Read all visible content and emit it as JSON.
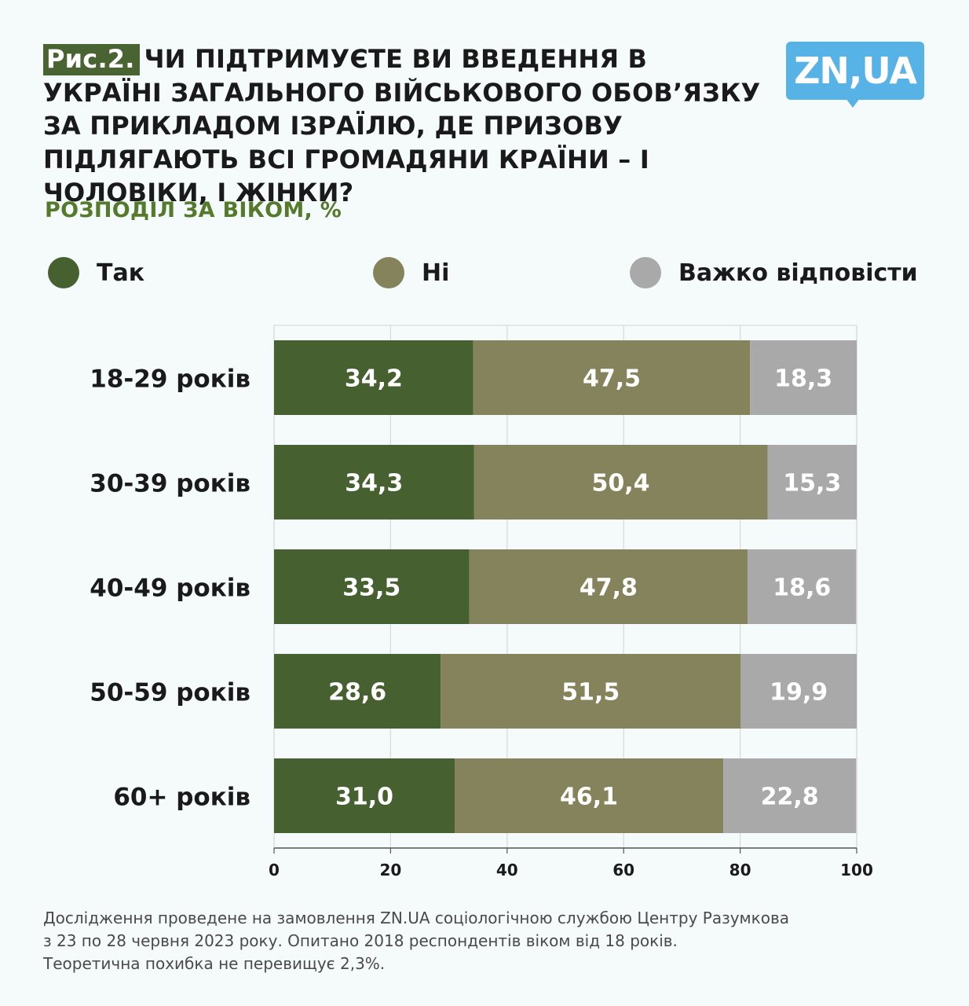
{
  "header": {
    "figure_tag": "Рис.2.",
    "title": "ЧИ ПІДТРИМУЄТЕ ВИ ВВЕДЕННЯ В УКРАЇНІ ЗАГАЛЬНОГО ВІЙСЬКОВОГО ОБОВ’ЯЗКУ ЗА ПРИКЛАДОМ ІЗРАЇЛЮ, ДЕ ПРИЗОВУ ПІДЛЯГАЮТЬ ВСІ ГРОМАДЯНИ КРАЇНИ – І ЧОЛОВІКИ, І ЖІНКИ?",
    "subtitle": "РОЗПОДІЛ ЗА ВІКОМ, %",
    "logo_text": "ZN,UA"
  },
  "chart_data": {
    "type": "bar",
    "orientation": "horizontal",
    "stacked": true,
    "categories": [
      "18-29 років",
      "30-39 років",
      "40-49 років",
      "50-59 років",
      "60+ років"
    ],
    "series": [
      {
        "name": "Так",
        "color": "#46602f",
        "values": [
          34.2,
          34.3,
          33.5,
          28.6,
          31.0
        ],
        "labels": [
          "34,2",
          "34,3",
          "33,5",
          "28,6",
          "31,0"
        ]
      },
      {
        "name": "Ні",
        "color": "#85835b",
        "values": [
          47.5,
          50.4,
          47.8,
          51.5,
          46.1
        ],
        "labels": [
          "47,5",
          "50,4",
          "47,8",
          "51,5",
          "46,1"
        ]
      },
      {
        "name": "Важко відповісти",
        "color": "#a9a9a9",
        "values": [
          18.3,
          15.3,
          18.6,
          19.9,
          22.8
        ],
        "labels": [
          "18,3",
          "15,3",
          "18,6",
          "19,9",
          "22,8"
        ]
      }
    ],
    "xlim": [
      0,
      100
    ],
    "xticks": [
      "0",
      "20",
      "40",
      "60",
      "80",
      "100"
    ],
    "grid": true,
    "legend_position": "top"
  },
  "footnote": [
    "Дослідження проведене на замовлення ZN.UA соціологічною службою Центру Разумкова",
    "з 23 по 28 червня 2023 року. Опитано 2018 респондентів віком від 18 років.",
    "Теоретична похибка не перевищує 2,3%."
  ]
}
